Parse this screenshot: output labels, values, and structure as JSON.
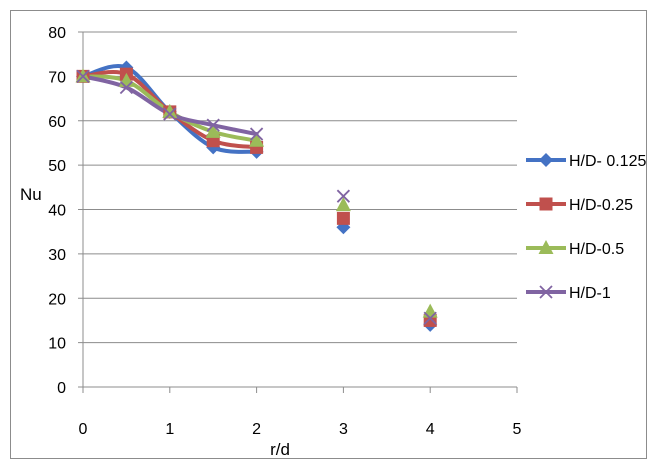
{
  "chart_data": {
    "type": "scatter",
    "title": "",
    "xlabel": "r/d",
    "ylabel": "Nu",
    "xlim": [
      0,
      5
    ],
    "ylim": [
      0,
      80
    ],
    "xticks": [
      "0",
      "1",
      "2",
      "3",
      "4",
      "5"
    ],
    "yticks": [
      "0",
      "10",
      "20",
      "30",
      "40",
      "50",
      "60",
      "70",
      "80"
    ],
    "grid": "horizontal",
    "legend_position": "right",
    "series": [
      {
        "name": "H/D- 0.125",
        "color": "#4472C4",
        "marker": "diamond",
        "x": [
          0,
          0.5,
          1,
          1.5,
          2,
          3,
          4
        ],
        "y": [
          70,
          72,
          62,
          54,
          53,
          36,
          14
        ],
        "smooth_through_x": 2
      },
      {
        "name": "H/D-0.25",
        "color": "#C0504D",
        "marker": "square",
        "x": [
          0,
          0.5,
          1,
          1.5,
          2,
          3,
          4
        ],
        "y": [
          70,
          70.5,
          62,
          55.5,
          54,
          38,
          15
        ],
        "smooth_through_x": 2
      },
      {
        "name": "H/D-0.5",
        "color": "#9BBB59",
        "marker": "triangle",
        "x": [
          0,
          0.5,
          1,
          1.5,
          2,
          3,
          4
        ],
        "y": [
          70,
          69,
          62,
          57.5,
          55.5,
          41,
          17
        ],
        "smooth_through_x": 2
      },
      {
        "name": "H/D-1",
        "color": "#8064A2",
        "marker": "x",
        "x": [
          0,
          0.5,
          1,
          1.5,
          2,
          3,
          4
        ],
        "y": [
          70,
          67.5,
          61.5,
          59,
          57,
          43,
          15.5
        ],
        "smooth_through_x": 2
      }
    ]
  }
}
